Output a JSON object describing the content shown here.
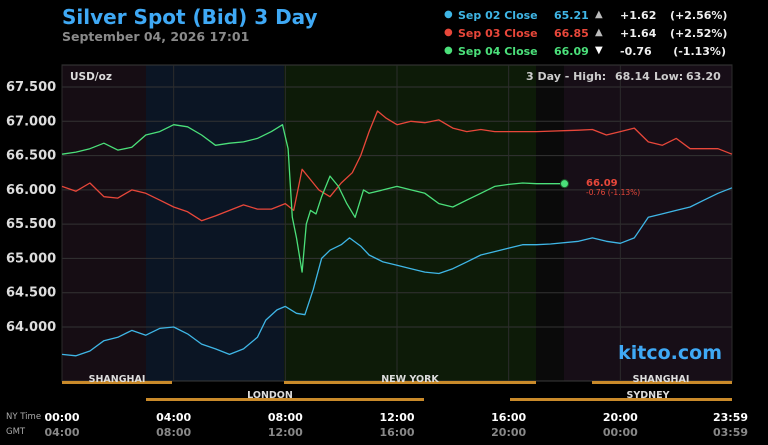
{
  "header": {
    "title": "Silver Spot (Bid) 3 Day",
    "subtitle": "September 04, 2026 17:01"
  },
  "legend": [
    {
      "label": "Sep 02 Close",
      "value": "65.21",
      "arrow": "▲",
      "change": "+1.62",
      "pct": "(+2.56%)",
      "color": "#3fb6e6"
    },
    {
      "label": "Sep 03 Close",
      "value": "66.85",
      "arrow": "▲",
      "change": "+1.64",
      "pct": "(+2.52%)",
      "color": "#e8473a"
    },
    {
      "label": "Sep 04 Close",
      "value": "66.09",
      "arrow": "▼",
      "change": "-0.76",
      "pct": "(-1.13%)",
      "color": "#4be07a"
    }
  ],
  "info": {
    "unit": "USD/oz",
    "hl_prefix": "3 Day - High:",
    "high": "68.14",
    "low_label": "Low:",
    "low": "63.20",
    "last_value": "66.09",
    "last_change": "-0.76 (-1.13%)",
    "watermark": "kitco.com"
  },
  "time_labels": {
    "ny": "NY Time",
    "gmt": "GMT"
  },
  "sessions_row1": [
    "SHANGHAI",
    "NEW YORK",
    "SHANGHAI"
  ],
  "sessions_row2": [
    "LONDON",
    "SYDNEY"
  ],
  "chart_data": {
    "type": "line",
    "title": "Silver Spot (Bid) 3 Day",
    "ylabel": "USD/oz",
    "ylim": [
      63.2,
      68.14
    ],
    "yticks": [
      "64.000",
      "64.500",
      "65.000",
      "65.500",
      "66.000",
      "66.500",
      "67.000",
      "67.500"
    ],
    "xlim": [
      0,
      24
    ],
    "xticks_ny": [
      "00:00",
      "04:00",
      "08:00",
      "12:00",
      "16:00",
      "20:00",
      "23:59"
    ],
    "xticks_gmt": [
      "04:00",
      "08:00",
      "12:00",
      "16:00",
      "20:00",
      "00:00",
      "03:59"
    ],
    "series": [
      {
        "name": "Sep 02 Close",
        "color": "#3fb6e6",
        "points": [
          [
            0,
            63.6
          ],
          [
            0.5,
            63.58
          ],
          [
            1,
            63.65
          ],
          [
            1.5,
            63.8
          ],
          [
            2,
            63.85
          ],
          [
            2.5,
            63.95
          ],
          [
            3,
            63.88
          ],
          [
            3.5,
            63.98
          ],
          [
            4,
            64.0
          ],
          [
            4.5,
            63.9
          ],
          [
            5,
            63.75
          ],
          [
            5.5,
            63.68
          ],
          [
            6,
            63.6
          ],
          [
            6.5,
            63.68
          ],
          [
            7,
            63.85
          ],
          [
            7.3,
            64.1
          ],
          [
            7.7,
            64.25
          ],
          [
            8,
            64.3
          ],
          [
            8.4,
            64.2
          ],
          [
            8.7,
            64.18
          ],
          [
            9,
            64.55
          ],
          [
            9.3,
            65.0
          ],
          [
            9.6,
            65.12
          ],
          [
            10,
            65.2
          ],
          [
            10.3,
            65.3
          ],
          [
            10.7,
            65.18
          ],
          [
            11,
            65.05
          ],
          [
            11.5,
            64.95
          ],
          [
            12,
            64.9
          ],
          [
            12.5,
            64.85
          ],
          [
            13,
            64.8
          ],
          [
            13.5,
            64.78
          ],
          [
            14,
            64.85
          ],
          [
            14.5,
            64.95
          ],
          [
            15,
            65.05
          ],
          [
            15.5,
            65.1
          ],
          [
            16,
            65.15
          ],
          [
            16.5,
            65.2
          ],
          [
            17,
            65.2
          ],
          [
            17.5,
            65.21
          ],
          [
            18.5,
            65.25
          ],
          [
            19,
            65.3
          ],
          [
            19.5,
            65.25
          ],
          [
            20,
            65.22
          ],
          [
            20.5,
            65.3
          ],
          [
            21,
            65.6
          ],
          [
            21.5,
            65.65
          ],
          [
            22,
            65.7
          ],
          [
            22.5,
            65.75
          ],
          [
            23,
            65.85
          ],
          [
            23.5,
            65.95
          ],
          [
            24,
            66.03
          ]
        ]
      },
      {
        "name": "Sep 03 Close",
        "color": "#e8473a",
        "points": [
          [
            0,
            66.05
          ],
          [
            0.5,
            65.98
          ],
          [
            1,
            66.1
          ],
          [
            1.5,
            65.9
          ],
          [
            2,
            65.88
          ],
          [
            2.5,
            66.0
          ],
          [
            3,
            65.95
          ],
          [
            3.5,
            65.85
          ],
          [
            4,
            65.75
          ],
          [
            4.5,
            65.68
          ],
          [
            5,
            65.55
          ],
          [
            5.5,
            65.62
          ],
          [
            6,
            65.7
          ],
          [
            6.5,
            65.78
          ],
          [
            7,
            65.72
          ],
          [
            7.5,
            65.72
          ],
          [
            8,
            65.8
          ],
          [
            8.3,
            65.7
          ],
          [
            8.6,
            66.3
          ],
          [
            8.9,
            66.15
          ],
          [
            9.2,
            66.0
          ],
          [
            9.6,
            65.9
          ],
          [
            10,
            66.1
          ],
          [
            10.4,
            66.25
          ],
          [
            10.7,
            66.5
          ],
          [
            11,
            66.85
          ],
          [
            11.3,
            67.15
          ],
          [
            11.6,
            67.05
          ],
          [
            12,
            66.95
          ],
          [
            12.5,
            67.0
          ],
          [
            13,
            66.98
          ],
          [
            13.5,
            67.02
          ],
          [
            14,
            66.9
          ],
          [
            14.5,
            66.85
          ],
          [
            15,
            66.88
          ],
          [
            15.5,
            66.85
          ],
          [
            16,
            66.85
          ],
          [
            16.5,
            66.85
          ],
          [
            17,
            66.85
          ],
          [
            18.5,
            66.87
          ],
          [
            19,
            66.88
          ],
          [
            19.5,
            66.8
          ],
          [
            20,
            66.85
          ],
          [
            20.5,
            66.9
          ],
          [
            21,
            66.7
          ],
          [
            21.5,
            66.65
          ],
          [
            22,
            66.75
          ],
          [
            22.5,
            66.6
          ],
          [
            23,
            66.6
          ],
          [
            23.5,
            66.6
          ],
          [
            24,
            66.52
          ]
        ]
      },
      {
        "name": "Sep 04 Close",
        "color": "#4be07a",
        "points": [
          [
            0,
            66.52
          ],
          [
            0.5,
            66.55
          ],
          [
            1,
            66.6
          ],
          [
            1.5,
            66.68
          ],
          [
            2,
            66.58
          ],
          [
            2.5,
            66.62
          ],
          [
            3,
            66.8
          ],
          [
            3.5,
            66.85
          ],
          [
            4,
            66.95
          ],
          [
            4.5,
            66.92
          ],
          [
            5,
            66.8
          ],
          [
            5.5,
            66.65
          ],
          [
            6,
            66.68
          ],
          [
            6.5,
            66.7
          ],
          [
            7,
            66.75
          ],
          [
            7.5,
            66.85
          ],
          [
            7.9,
            66.95
          ],
          [
            8.1,
            66.6
          ],
          [
            8.25,
            65.6
          ],
          [
            8.4,
            65.3
          ],
          [
            8.6,
            64.8
          ],
          [
            8.75,
            65.5
          ],
          [
            8.9,
            65.7
          ],
          [
            9.1,
            65.65
          ],
          [
            9.3,
            65.9
          ],
          [
            9.6,
            66.2
          ],
          [
            9.9,
            66.05
          ],
          [
            10.2,
            65.8
          ],
          [
            10.5,
            65.6
          ],
          [
            10.8,
            66.0
          ],
          [
            11,
            65.95
          ],
          [
            11.5,
            66.0
          ],
          [
            12,
            66.05
          ],
          [
            12.5,
            66.0
          ],
          [
            13,
            65.95
          ],
          [
            13.5,
            65.8
          ],
          [
            14,
            65.75
          ],
          [
            14.5,
            65.85
          ],
          [
            15,
            65.95
          ],
          [
            15.5,
            66.05
          ],
          [
            16,
            66.08
          ],
          [
            16.5,
            66.1
          ],
          [
            17,
            66.09
          ],
          [
            18,
            66.09
          ]
        ]
      }
    ]
  }
}
